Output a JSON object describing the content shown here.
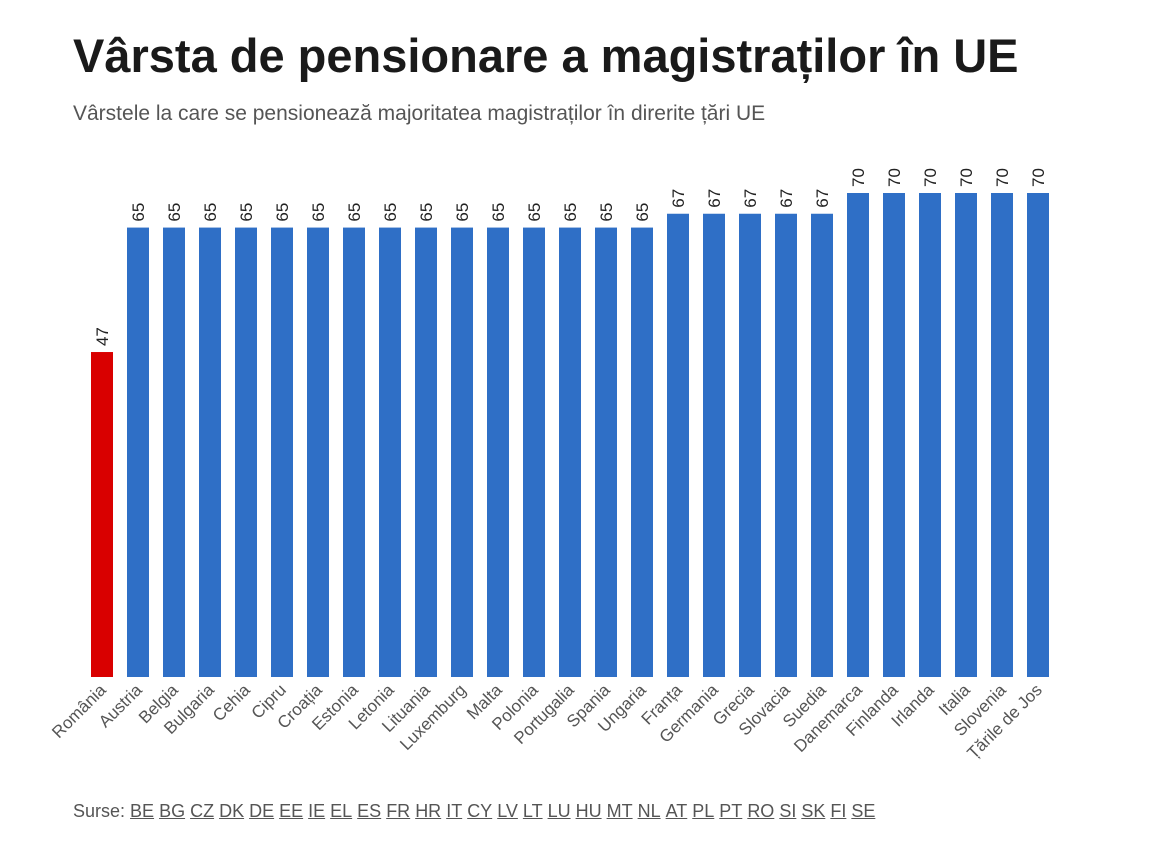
{
  "title": "Vârsta de pensionare a magistraților în UE",
  "subtitle": "Vârstele la care se pensionează majoritatea magistraților în direrite țări UE",
  "chart_data": {
    "type": "bar",
    "title": "Vârsta de pensionare a magistraților în UE",
    "subtitle": "Vârstele la care se pensionează majoritatea magistraților în direrite țări UE",
    "categories": [
      "România",
      "Austria",
      "Belgia",
      "Bulgaria",
      "Cehia",
      "Cipru",
      "Croația",
      "Estonia",
      "Letonia",
      "Lituania",
      "Luxemburg",
      "Malta",
      "Polonia",
      "Portugalia",
      "Spania",
      "Ungaria",
      "Franța",
      "Germania",
      "Grecia",
      "Slovacia",
      "Suedia",
      "Danemarca",
      "Finlanda",
      "Irlanda",
      "Italia",
      "Slovenia",
      "Țările de Jos"
    ],
    "values": [
      47,
      65,
      65,
      65,
      65,
      65,
      65,
      65,
      65,
      65,
      65,
      65,
      65,
      65,
      65,
      65,
      67,
      67,
      67,
      67,
      67,
      70,
      70,
      70,
      70,
      70,
      70
    ],
    "ylim": [
      0,
      70
    ],
    "grid": false,
    "data_labels": true,
    "colors": {
      "highlight": "#d90000",
      "default": "#2f6fc6"
    },
    "highlighted_category": "România"
  },
  "sources": {
    "label": "Surse:",
    "links": [
      "BE",
      "BG",
      "CZ",
      "DK",
      "DE",
      "EE",
      "IE",
      "EL",
      "ES",
      "FR",
      "HR",
      "IT",
      "CY",
      "LV",
      "LT",
      "LU",
      "HU",
      "MT",
      "NL",
      "AT",
      "PL",
      "PT",
      "RO",
      "SI",
      "SK",
      "FI",
      "SE"
    ]
  }
}
